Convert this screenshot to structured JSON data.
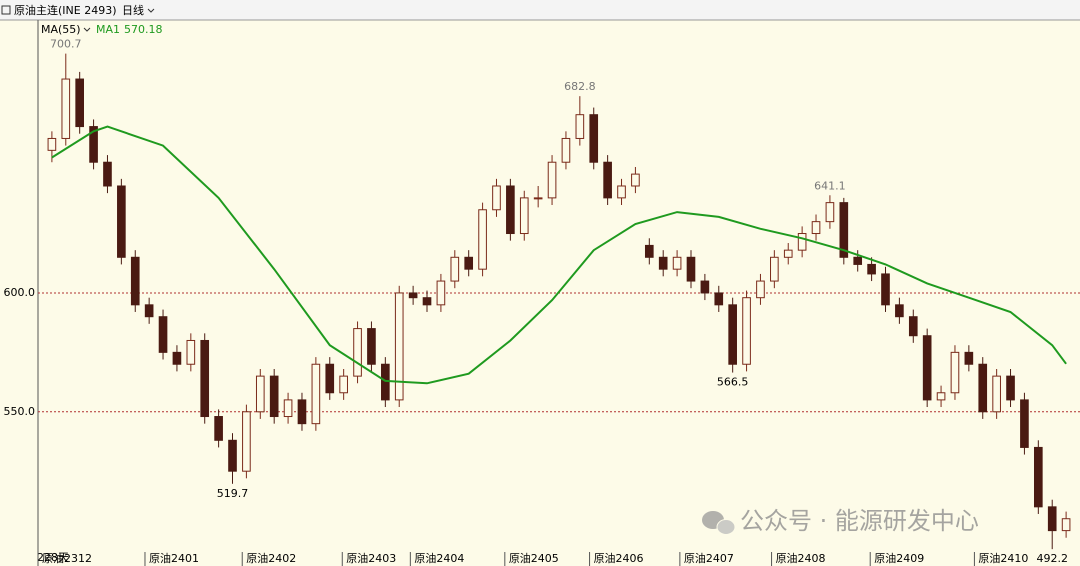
{
  "header": {
    "title": "原油主连(INE 2493)",
    "period": "日线"
  },
  "chart_data": {
    "type": "candlestick",
    "indicator": "MA(55)",
    "days": "228天",
    "watermark": "公众号 · 能源研发中心",
    "xlim": [
      -1,
      74
    ],
    "ylim": [
      491,
      714
    ],
    "yticks": [
      {
        "value": 600,
        "label": "600.0"
      },
      {
        "value": 550,
        "label": "550.0"
      }
    ],
    "xticks": [
      {
        "value": -1,
        "label": "原油2312"
      },
      {
        "value": 6.7,
        "label": "原油2401"
      },
      {
        "value": 13.7,
        "label": "原油2402"
      },
      {
        "value": 20.9,
        "label": "原油2403"
      },
      {
        "value": 25.8,
        "label": "原油2404"
      },
      {
        "value": 32.6,
        "label": "原油2405"
      },
      {
        "value": 38.7,
        "label": "原油2406"
      },
      {
        "value": 45.2,
        "label": "原油2407"
      },
      {
        "value": 51.8,
        "label": "原油2408"
      },
      {
        "value": 58.9,
        "label": "原油2409"
      },
      {
        "value": 66.4,
        "label": "原油2410"
      }
    ],
    "up_color": "#7a2a1a",
    "down_color": "#4a1a12",
    "open": [
      660,
      665,
      690,
      670,
      655,
      645,
      615,
      595,
      590,
      575,
      570,
      580,
      548,
      538,
      525,
      550,
      565,
      548,
      555,
      545,
      570,
      558,
      565,
      585,
      570,
      555,
      600,
      598,
      595,
      605,
      615,
      610,
      635,
      645,
      625,
      640,
      640,
      655,
      665,
      675,
      655,
      640,
      645,
      620,
      615,
      610,
      615,
      605,
      600,
      595,
      570,
      598,
      605,
      615,
      618,
      625,
      630,
      638,
      615,
      612,
      608,
      595,
      590,
      582,
      555,
      558,
      575,
      570,
      550,
      565,
      555,
      535,
      510,
      500
    ],
    "high": [
      668,
      700.7,
      693,
      673,
      658,
      648,
      618,
      598,
      593,
      578,
      583,
      583,
      551,
      541,
      553,
      568,
      568,
      558,
      558,
      573,
      573,
      568,
      588,
      588,
      573,
      603,
      603,
      601,
      608,
      618,
      618,
      638,
      648,
      648,
      643,
      645,
      658,
      668,
      682.8,
      678,
      658,
      648,
      653,
      623,
      618,
      618,
      618,
      608,
      603,
      598,
      601,
      608,
      618,
      621,
      628,
      633,
      641.1,
      640,
      618,
      615,
      611,
      598,
      593,
      585,
      561,
      578,
      578,
      573,
      568,
      568,
      558,
      538,
      513,
      508
    ],
    "low": [
      655,
      662,
      667,
      652,
      642,
      612,
      592,
      587,
      572,
      567,
      567,
      545,
      535,
      519.7,
      522,
      547,
      545,
      545,
      542,
      542,
      555,
      555,
      562,
      567,
      552,
      552,
      595,
      592,
      592,
      602,
      607,
      607,
      632,
      622,
      622,
      636,
      637,
      652,
      662,
      652,
      637,
      637,
      642,
      612,
      607,
      607,
      602,
      597,
      592,
      566.5,
      567,
      595,
      602,
      612,
      615,
      622,
      627,
      612,
      609,
      605,
      592,
      587,
      579,
      552,
      552,
      555,
      567,
      547,
      547,
      552,
      532,
      507,
      492.2,
      497
    ],
    "close": [
      665,
      690,
      670,
      655,
      645,
      615,
      595,
      590,
      575,
      570,
      580,
      548,
      538,
      525,
      550,
      565,
      548,
      555,
      545,
      570,
      558,
      565,
      585,
      570,
      555,
      600,
      598,
      595,
      605,
      615,
      610,
      635,
      645,
      625,
      640,
      640,
      655,
      665,
      675,
      655,
      640,
      645,
      650,
      615,
      610,
      615,
      605,
      600,
      595,
      570,
      598,
      605,
      615,
      618,
      625,
      630,
      638,
      615,
      612,
      608,
      595,
      590,
      582,
      555,
      558,
      575,
      570,
      550,
      565,
      555,
      535,
      510,
      500,
      505
    ],
    "annotations": [
      {
        "x": 1,
        "value": 700.7
      },
      {
        "x": 13,
        "value": 519.7
      },
      {
        "x": 38,
        "value": 682.8
      },
      {
        "x": 49,
        "value": 566.5
      },
      {
        "x": 56,
        "value": 641.1
      },
      {
        "x": 72,
        "value": 492.2
      }
    ],
    "ma": {
      "name": "MA1",
      "color": "#1f9a1f",
      "x": [
        0,
        3,
        4,
        8,
        12,
        16,
        20,
        24,
        27,
        30,
        33,
        36,
        39,
        42,
        45,
        48,
        51,
        54,
        57,
        60,
        63,
        66,
        69,
        72,
        73
      ],
      "values": [
        657,
        668,
        670,
        662,
        640,
        610,
        578,
        563,
        562,
        566,
        580,
        597,
        618,
        629,
        634,
        632,
        627,
        623,
        618,
        612,
        604,
        598,
        592,
        578,
        570.18
      ]
    }
  }
}
